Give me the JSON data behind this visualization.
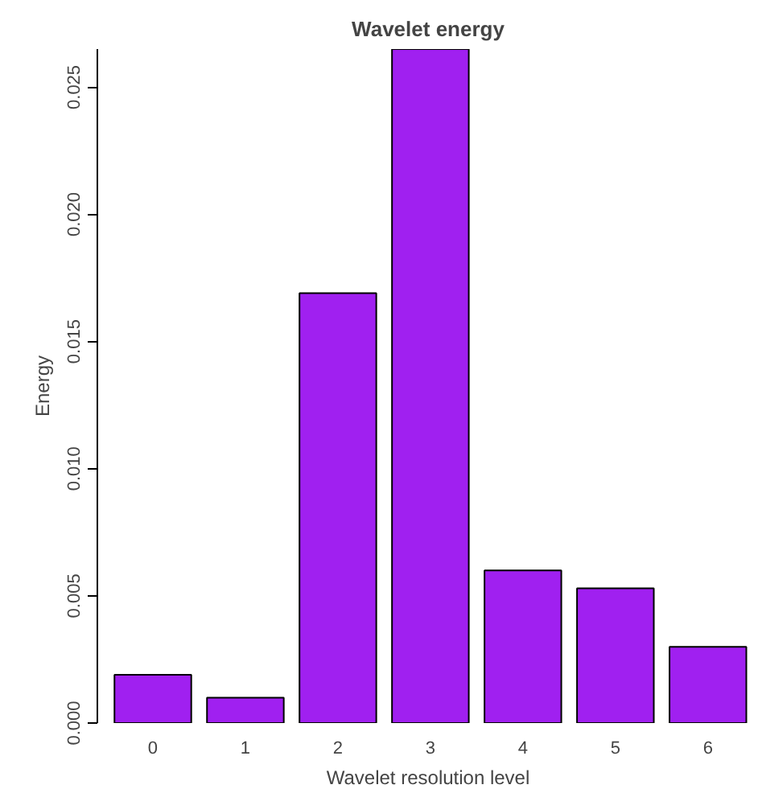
{
  "chart_data": {
    "type": "bar",
    "title": "Wavelet energy",
    "xlabel": "Wavelet resolution level",
    "ylabel": "Energy",
    "categories": [
      "0",
      "1",
      "2",
      "3",
      "4",
      "5",
      "6"
    ],
    "values": [
      0.0019,
      0.001,
      0.0169,
      0.0265,
      0.006,
      0.0053,
      0.003
    ],
    "color": "#a020f0",
    "ylim": [
      0,
      0.0265
    ],
    "yticks": [
      {
        "value": 0,
        "label": "0.000"
      },
      {
        "value": 0.005,
        "label": "0.005"
      },
      {
        "value": 0.01,
        "label": "0.010"
      },
      {
        "value": 0.015,
        "label": "0.015"
      },
      {
        "value": 0.02,
        "label": "0.020"
      },
      {
        "value": 0.025,
        "label": "0.025"
      }
    ],
    "grid": false
  }
}
